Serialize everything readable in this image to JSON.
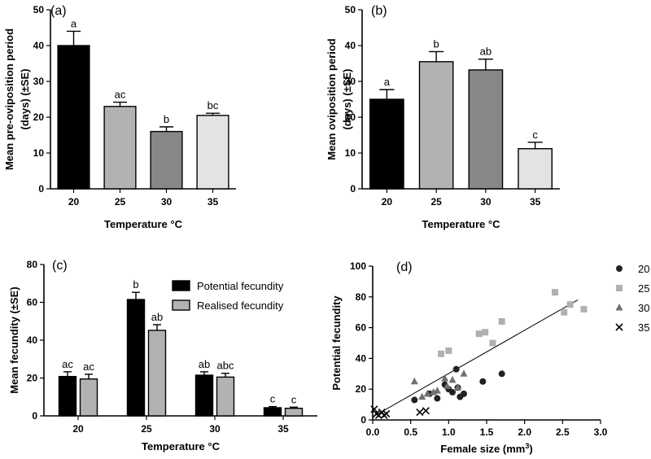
{
  "chart_data": [
    {
      "panel": "(a)",
      "type": "bar",
      "xlabel": "Temperature °C",
      "ylabel": "Mean pre-oviposition period (days) (±SE)",
      "ylabel_lines": [
        "Mean pre-oviposition period",
        "(days) (±SE)"
      ],
      "categories": [
        "20",
        "25",
        "30",
        "35"
      ],
      "values": [
        40,
        23,
        16,
        20.5
      ],
      "errors": [
        4,
        1.2,
        1.3,
        0.6
      ],
      "letters": [
        "a",
        "ac",
        "b",
        "bc"
      ],
      "colors": [
        "#000000",
        "#b2b2b2",
        "#878787",
        "#e3e3e3"
      ],
      "ylim": [
        0,
        50
      ],
      "yticks": [
        0,
        10,
        20,
        30,
        40,
        50
      ]
    },
    {
      "panel": "(b)",
      "type": "bar",
      "xlabel": "Temperature °C",
      "ylabel": "Mean oviposition period (days) (±SE)",
      "ylabel_lines": [
        "Mean oviposition period",
        "(days) (±SE)"
      ],
      "categories": [
        "20",
        "25",
        "30",
        "35"
      ],
      "values": [
        25,
        35.5,
        33.2,
        11.2
      ],
      "errors": [
        2.7,
        2.8,
        3.0,
        1.8
      ],
      "letters": [
        "a",
        "b",
        "ab",
        "c"
      ],
      "colors": [
        "#000000",
        "#b2b2b2",
        "#878787",
        "#e3e3e3"
      ],
      "ylim": [
        0,
        50
      ],
      "yticks": [
        0,
        10,
        20,
        30,
        40,
        50
      ]
    },
    {
      "panel": "(c)",
      "type": "bar",
      "xlabel": "Temperature °C",
      "ylabel": "Mean fecundity (±SE)",
      "categories": [
        "20",
        "25",
        "30",
        "35"
      ],
      "ylim": [
        0,
        80
      ],
      "yticks": [
        0,
        20,
        40,
        60,
        80
      ],
      "series": [
        {
          "name": "Potential fecundity",
          "color": "#000000",
          "values": [
            20.8,
            61.5,
            21.5,
            4.3
          ],
          "errors": [
            2.5,
            3.8,
            1.8,
            0.6
          ],
          "letters": [
            "ac",
            "b",
            "ab",
            "c"
          ]
        },
        {
          "name": "Realised fecundity",
          "color": "#b2b2b2",
          "values": [
            19.5,
            45.2,
            20.5,
            4.0
          ],
          "errors": [
            2.5,
            3.0,
            2.0,
            0.6
          ],
          "letters": [
            "ac",
            "ab",
            "abc",
            "c"
          ]
        }
      ]
    },
    {
      "panel": "(d)",
      "type": "scatter",
      "xlabel": "Female size (mm³)",
      "ylabel": "Potential fecundity",
      "xlim": [
        0,
        3.0
      ],
      "ylim": [
        0,
        100
      ],
      "xticks": [
        "0.0",
        "0.5",
        "1.0",
        "1.5",
        "2.0",
        "2.5",
        "3.0"
      ],
      "yticks": [
        0,
        20,
        40,
        60,
        80,
        100
      ],
      "fit_line": {
        "x": [
          0.0,
          2.7
        ],
        "y": [
          2,
          78
        ]
      },
      "series": [
        {
          "name": "20",
          "marker": "circle",
          "color": "#222222",
          "x": [
            0.55,
            0.75,
            0.85,
            0.95,
            1.0,
            1.05,
            1.1,
            1.15,
            1.2,
            1.12,
            1.45,
            1.7
          ],
          "y": [
            13,
            17,
            14,
            23,
            20,
            18,
            33,
            15,
            17,
            21,
            25,
            30
          ]
        },
        {
          "name": "25",
          "marker": "square",
          "color": "#b0b0b0",
          "x": [
            0.9,
            1.0,
            1.4,
            1.48,
            1.58,
            1.7,
            2.4,
            2.52,
            2.6,
            2.78
          ],
          "y": [
            43,
            45,
            56,
            57,
            50,
            64,
            83,
            70,
            75,
            72
          ]
        },
        {
          "name": "30",
          "marker": "triangle",
          "color": "#707070",
          "x": [
            0.55,
            0.65,
            0.72,
            0.8,
            0.85,
            0.95,
            0.98,
            1.05,
            1.12,
            1.2
          ],
          "y": [
            25,
            15,
            17,
            18,
            19,
            27,
            22,
            26,
            21,
            30
          ]
        },
        {
          "name": "35",
          "marker": "x",
          "color": "#000000",
          "x": [
            0.02,
            0.05,
            0.08,
            0.12,
            0.15,
            0.18,
            0.62,
            0.7
          ],
          "y": [
            7,
            4,
            3,
            5,
            3,
            4,
            5,
            6
          ]
        }
      ]
    }
  ]
}
